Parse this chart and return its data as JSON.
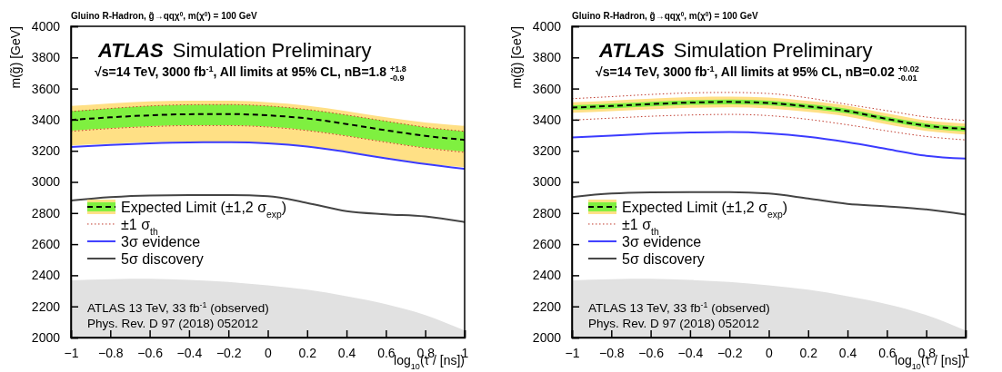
{
  "chart_data": [
    {
      "type": "line",
      "title": "Gluino R-Hadron,  g̃→qqχ$^{0}$, m(χ$^{0}$) = 100 GeV",
      "subtitle": "√s=14 TeV, 3000 fb$^{-1}$, All limits at 95% CL, nB=1.8 $^{+1.8}$$_{-0.9}$",
      "xlabel": "log$_{10}$(τ / [ns])",
      "ylabel": "m(g̃) [GeV]",
      "annotations": [
        "ATLAS",
        "Simulation Preliminary",
        "ATLAS 13 TeV, 33 fb$^{-1}$ (observed)",
        "Phys. Rev. D 97 (2018) 052012"
      ],
      "x": [
        -1,
        -0.8,
        -0.6,
        -0.4,
        -0.2,
        0,
        0.2,
        0.4,
        0.6,
        0.8,
        1
      ],
      "xlim": [
        -1,
        1
      ],
      "xticks": [
        {
          "value": -1,
          "label": "−1"
        },
        {
          "value": -0.8,
          "label": "−0.8"
        },
        {
          "value": -0.6,
          "label": "−0.6"
        },
        {
          "value": -0.4,
          "label": "−0.4"
        },
        {
          "value": -0.2,
          "label": "−0.2"
        },
        0,
        0.2,
        0.4,
        0.6,
        0.8,
        1
      ],
      "ylim": [
        2000,
        4000
      ],
      "yticks": [
        2000,
        2200,
        2400,
        2600,
        2800,
        3000,
        3200,
        3400,
        3600,
        3800,
        4000
      ],
      "legend": "left",
      "series": [
        {
          "color": "#ffe085",
          "values": [
            null,
            null,
            null,
            null,
            null,
            null,
            null,
            null,
            null,
            null,
            null
          ],
          "lower": [
            3235,
            3245,
            3255,
            3258,
            3258,
            3250,
            3230,
            3195,
            3155,
            3118,
            3095
          ],
          "upper": [
            3488,
            3505,
            3517,
            3522,
            3522,
            3512,
            3490,
            3455,
            3415,
            3382,
            3360
          ]
        },
        {
          "color": "#7ff040",
          "values": [
            null,
            null,
            null,
            null,
            null,
            null,
            null,
            null,
            null,
            null,
            null
          ],
          "lower": [
            3330,
            3345,
            3358,
            3364,
            3364,
            3355,
            3333,
            3298,
            3258,
            3220,
            3195
          ],
          "upper": [
            3455,
            3472,
            3488,
            3496,
            3497,
            3488,
            3465,
            3430,
            3390,
            3350,
            3325
          ]
        },
        {
          "name": "Expected Limit (±1,2 σ$_{exp}$)",
          "color": "#000000",
          "line_style": "dashed",
          "values": [
            3398,
            3415,
            3428,
            3435,
            3436,
            3428,
            3408,
            3372,
            3332,
            3296,
            3270
          ]
        },
        {
          "name": "±1 σ$_{th}$",
          "color": "#c0392b",
          "line_style": "dotted",
          "values": [
            3452,
            3472,
            3488,
            3496,
            3497,
            3488,
            3465,
            3430,
            3390,
            3352,
            3325
          ]
        },
        {
          "color": "#c0392b",
          "line_style": "dotted",
          "values": [
            3325,
            3343,
            3355,
            3362,
            3362,
            3353,
            3330,
            3295,
            3255,
            3218,
            3190
          ]
        },
        {
          "name": "3σ evidence",
          "color": "#3b3bff",
          "line_style": "solid",
          "values": [
            3225,
            3238,
            3248,
            3254,
            3255,
            3248,
            3228,
            3192,
            3152,
            3115,
            3084
          ]
        },
        {
          "name": "5σ discovery",
          "color": "#444444",
          "line_style": "solid",
          "values": [
            2880,
            2902,
            2913,
            2915,
            2915,
            2908,
            2865,
            2812,
            2792,
            2778,
            2742
          ]
        },
        {
          "type": "area",
          "color": "#e1e1e1",
          "values": [
            2368,
            2375,
            2377,
            2370,
            2357,
            2335,
            2307,
            2265,
            2215,
            2145,
            2045
          ]
        }
      ]
    },
    {
      "type": "line",
      "title": "Gluino R-Hadron,  g̃→qqχ$^{0}$, m(χ$^{0}$) = 100 GeV",
      "subtitle": "√s=14 TeV, 3000 fb$^{-1}$, All limits at 95% CL, nB=0.02 $^{+0.02}$$_{-0.01}$",
      "xlabel": "log$_{10}$(τ / [ns])",
      "ylabel": "m(g̃) [GeV]",
      "annotations": [
        "ATLAS",
        "Simulation Preliminary",
        "ATLAS 13 TeV, 33 fb$^{-1}$ (observed)",
        "Phys. Rev. D 97 (2018) 052012"
      ],
      "x": [
        -1,
        -0.8,
        -0.6,
        -0.4,
        -0.2,
        0,
        0.2,
        0.4,
        0.6,
        0.8,
        1
      ],
      "xlim": [
        -1,
        1
      ],
      "xticks": [
        {
          "value": -1,
          "label": "−1"
        },
        {
          "value": -0.8,
          "label": "−0.8"
        },
        {
          "value": -0.6,
          "label": "−0.6"
        },
        {
          "value": -0.4,
          "label": "−0.4"
        },
        {
          "value": -0.2,
          "label": "−0.2"
        },
        0,
        0.2,
        0.4,
        0.6,
        0.8,
        1
      ],
      "ylim": [
        2000,
        4000
      ],
      "yticks": [
        2000,
        2200,
        2400,
        2600,
        2800,
        3000,
        3200,
        3400,
        3600,
        3800,
        4000
      ],
      "legend": "left",
      "series": [
        {
          "color": "#ffe085",
          "values": [
            null,
            null,
            null,
            null,
            null,
            null,
            null,
            null,
            null,
            null,
            null
          ],
          "lower": [
            3445,
            3455,
            3466,
            3476,
            3480,
            3472,
            3450,
            3420,
            3370,
            3328,
            3305
          ],
          "upper": [
            3512,
            3522,
            3535,
            3545,
            3548,
            3542,
            3520,
            3490,
            3440,
            3395,
            3375
          ]
        },
        {
          "color": "#7ff040",
          "values": [
            null,
            null,
            null,
            null,
            null,
            null,
            null,
            null,
            null,
            null,
            null
          ],
          "lower": [
            3463,
            3473,
            3485,
            3495,
            3499,
            3492,
            3470,
            3440,
            3390,
            3346,
            3325
          ],
          "upper": [
            3493,
            3503,
            3515,
            3525,
            3529,
            3522,
            3500,
            3470,
            3420,
            3376,
            3355
          ]
        },
        {
          "name": "Expected Limit (±1,2 σ$_{exp}$)",
          "color": "#000000",
          "line_style": "dashed",
          "values": [
            3478,
            3488,
            3500,
            3510,
            3514,
            3507,
            3485,
            3455,
            3405,
            3361,
            3340
          ]
        },
        {
          "name": "±1 σ$_{th}$",
          "color": "#c0392b",
          "line_style": "dotted",
          "values": [
            3535,
            3548,
            3562,
            3572,
            3575,
            3568,
            3540,
            3498,
            3458,
            3417,
            3395
          ]
        },
        {
          "color": "#c0392b",
          "line_style": "dotted",
          "values": [
            3397,
            3410,
            3422,
            3430,
            3434,
            3426,
            3402,
            3367,
            3328,
            3292,
            3270
          ]
        },
        {
          "name": "3σ evidence",
          "color": "#3b3bff",
          "line_style": "solid",
          "values": [
            3286,
            3298,
            3310,
            3318,
            3320,
            3312,
            3290,
            3255,
            3212,
            3168,
            3150
          ]
        },
        {
          "name": "5σ discovery",
          "color": "#444444",
          "line_style": "solid",
          "values": [
            2903,
            2925,
            2933,
            2935,
            2935,
            2925,
            2893,
            2859,
            2843,
            2823,
            2790
          ]
        },
        {
          "type": "area",
          "color": "#e1e1e1",
          "values": [
            2368,
            2375,
            2377,
            2370,
            2357,
            2335,
            2307,
            2265,
            2215,
            2145,
            2045
          ]
        }
      ]
    }
  ]
}
